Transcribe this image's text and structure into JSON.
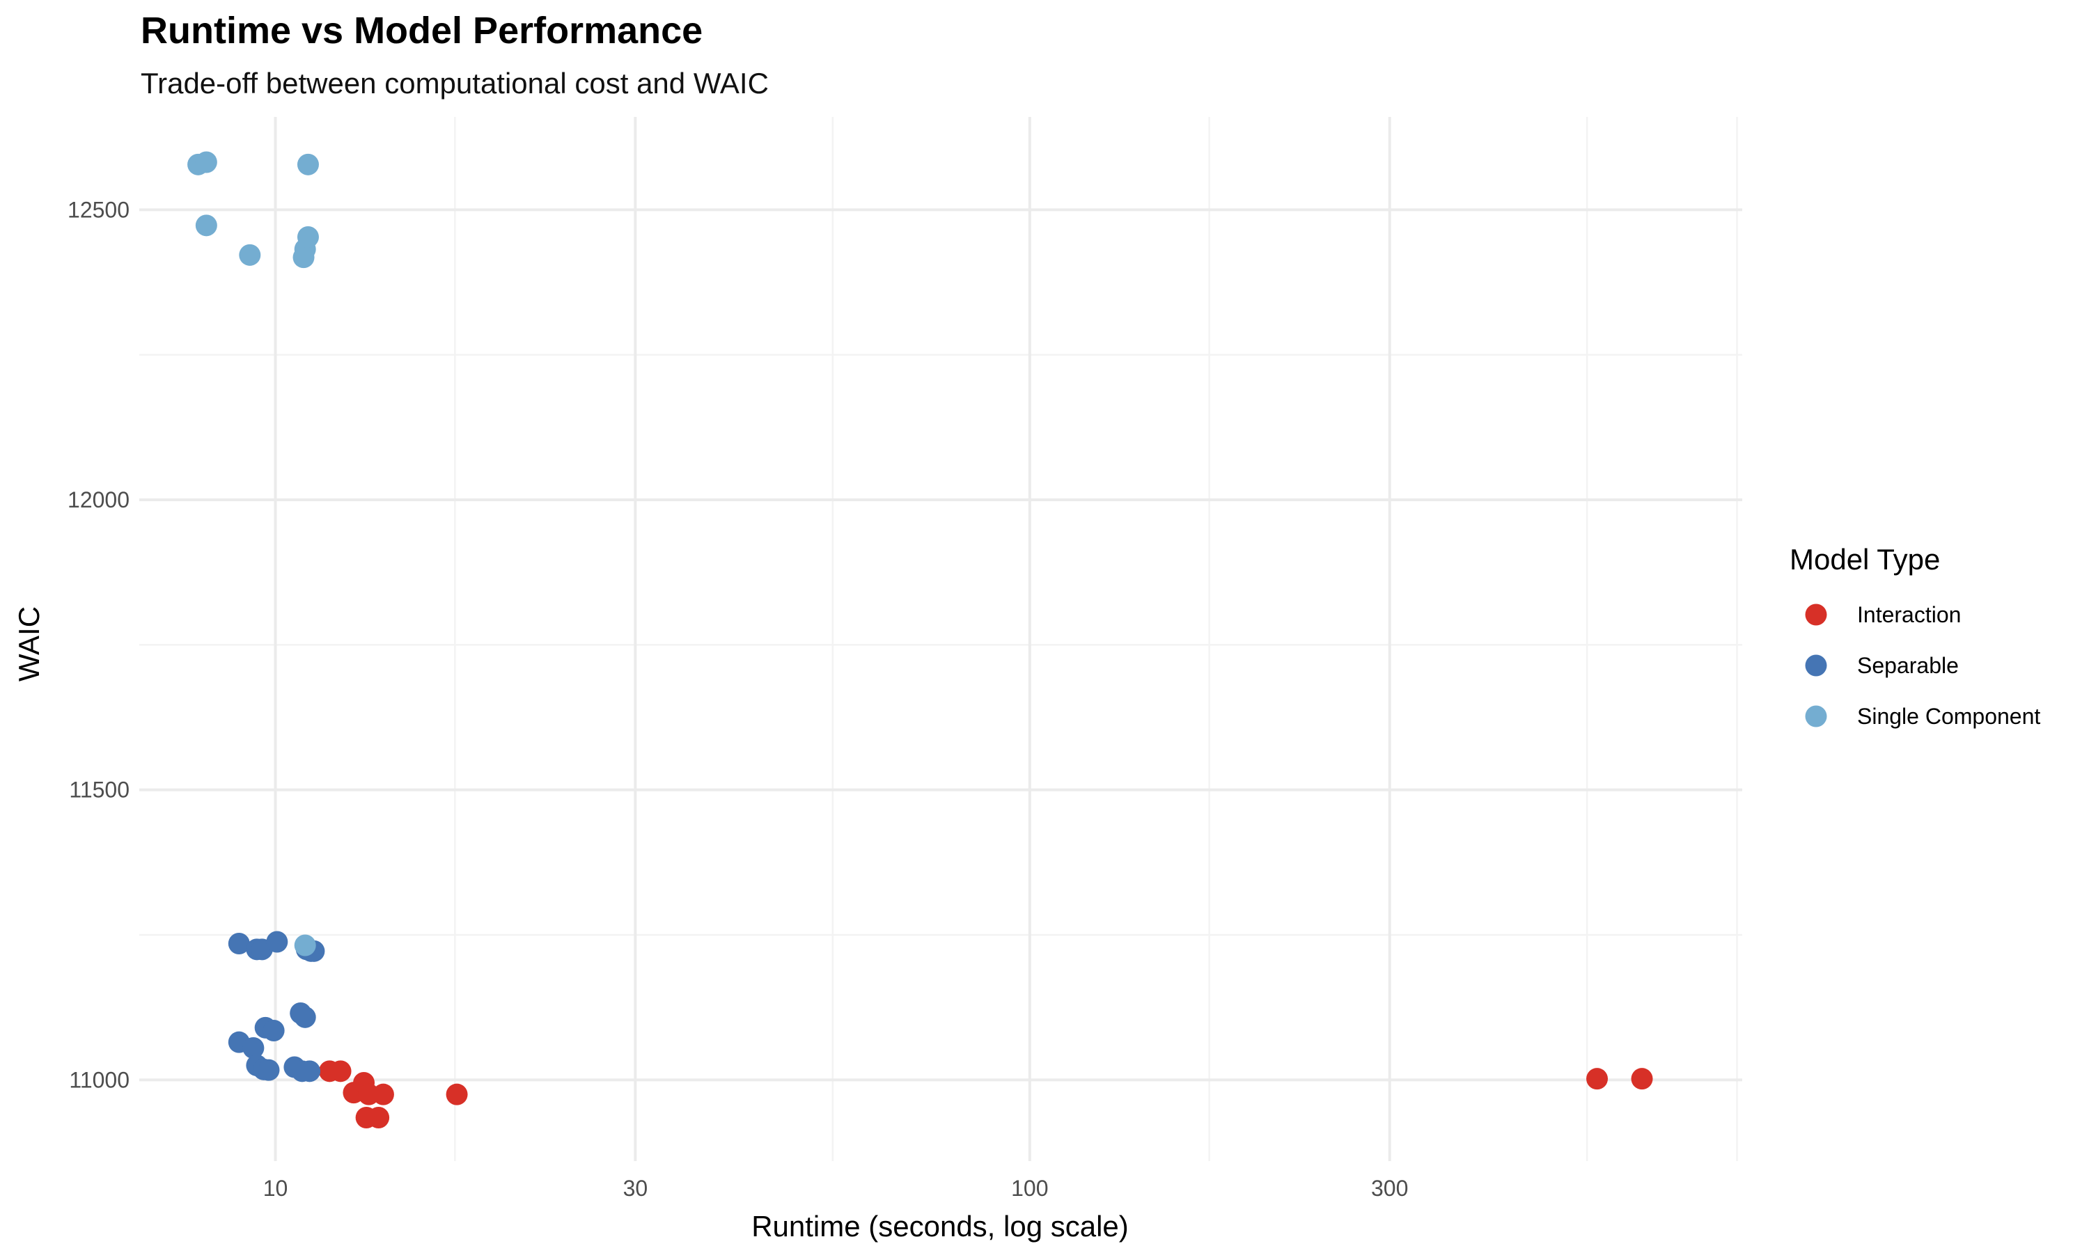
{
  "chart_data": {
    "type": "scatter",
    "title": "Runtime vs Model Performance",
    "subtitle": "Trade-off between computational cost and WAIC",
    "xlabel": "Runtime (seconds, log scale)",
    "ylabel": "WAIC",
    "x_scale": "log10",
    "xlim": [
      6.6,
      880
    ],
    "ylim": [
      10860,
      12660
    ],
    "x_ticks": [
      10,
      30,
      100,
      300
    ],
    "x_tick_labels": [
      "10",
      "30",
      "100",
      "300"
    ],
    "x_minor_ticks": [
      17.3,
      54.8,
      173,
      548,
      866
    ],
    "y_ticks": [
      11000,
      11500,
      12000,
      12500
    ],
    "y_tick_labels": [
      "11000",
      "11500",
      "12000",
      "12500"
    ],
    "y_minor_ticks": [
      11250,
      11750,
      12250
    ],
    "grid": true,
    "legend": {
      "title": "Model Type",
      "position": "right"
    },
    "series": [
      {
        "name": "Interaction",
        "color": "#d73027",
        "points": [
          [
            11.8,
            11015
          ],
          [
            12.2,
            11015
          ],
          [
            12.7,
            10978
          ],
          [
            13.1,
            10995
          ],
          [
            13.3,
            10975
          ],
          [
            13.9,
            10975
          ],
          [
            13.2,
            10935
          ],
          [
            13.7,
            10935
          ],
          [
            17.4,
            10975
          ],
          [
            565,
            11002
          ],
          [
            648,
            11002
          ]
        ]
      },
      {
        "name": "Separable",
        "color": "#4575b4",
        "points": [
          [
            8.95,
            11235
          ],
          [
            9.45,
            11225
          ],
          [
            9.6,
            11225
          ],
          [
            10.05,
            11238
          ],
          [
            11.0,
            11225
          ],
          [
            11.15,
            11222
          ],
          [
            11.25,
            11222
          ],
          [
            8.95,
            11065
          ],
          [
            9.35,
            11055
          ],
          [
            9.7,
            11090
          ],
          [
            9.95,
            11085
          ],
          [
            10.8,
            11115
          ],
          [
            10.95,
            11108
          ],
          [
            9.45,
            11025
          ],
          [
            9.65,
            11018
          ],
          [
            9.8,
            11017
          ],
          [
            10.6,
            11022
          ],
          [
            10.85,
            11015
          ],
          [
            11.1,
            11015
          ]
        ]
      },
      {
        "name": "Single Component",
        "color": "#74add1",
        "points": [
          [
            7.9,
            12578
          ],
          [
            8.1,
            12582
          ],
          [
            11.05,
            12578
          ],
          [
            8.1,
            12473
          ],
          [
            9.25,
            12422
          ],
          [
            10.9,
            12418
          ],
          [
            10.95,
            12432
          ],
          [
            11.05,
            12453
          ],
          [
            10.95,
            11232
          ]
        ]
      }
    ]
  }
}
